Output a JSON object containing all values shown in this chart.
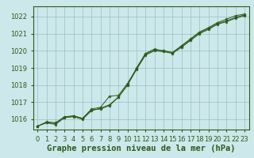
{
  "title": "Graphe pression niveau de la mer (hPa)",
  "x_labels": [
    0,
    1,
    2,
    3,
    4,
    5,
    6,
    7,
    8,
    9,
    10,
    11,
    12,
    13,
    14,
    15,
    16,
    17,
    18,
    19,
    20,
    21,
    22,
    23
  ],
  "ylim": [
    1015.4,
    1022.6
  ],
  "yticks": [
    1016,
    1017,
    1018,
    1019,
    1020,
    1021,
    1022
  ],
  "background_color": "#cce8ea",
  "grid_color": "#9bbfbf",
  "line_color": "#2d5a1b",
  "marker_color": "#2d5a1b",
  "text_color": "#2d5a1b",
  "axis_color": "#2d5a1b",
  "series1": [
    1015.6,
    1015.8,
    1015.75,
    1016.1,
    1016.2,
    1016.05,
    1016.55,
    1016.6,
    1016.8,
    1017.3,
    1018.0,
    1019.0,
    1019.85,
    1020.1,
    1020.0,
    1019.9,
    1020.3,
    1020.7,
    1021.1,
    1021.35,
    1021.65,
    1021.85,
    1022.05,
    1022.15
  ],
  "series2": [
    1015.6,
    1015.85,
    1015.8,
    1016.15,
    1016.2,
    1016.05,
    1016.6,
    1016.7,
    1017.35,
    1017.4,
    1018.1,
    1018.95,
    1019.8,
    1020.05,
    1020.0,
    1019.9,
    1020.25,
    1020.65,
    1021.05,
    1021.3,
    1021.6,
    1021.75,
    1021.95,
    1022.1
  ],
  "series3": [
    1015.6,
    1015.8,
    1015.7,
    1016.1,
    1016.15,
    1016.0,
    1016.5,
    1016.65,
    1016.85,
    1017.3,
    1018.0,
    1018.9,
    1019.75,
    1020.0,
    1019.95,
    1019.85,
    1020.2,
    1020.6,
    1021.0,
    1021.25,
    1021.55,
    1021.7,
    1021.9,
    1022.05
  ],
  "title_fontsize": 7.5,
  "tick_fontsize": 6.0,
  "figwidth": 3.2,
  "figheight": 2.0,
  "dpi": 100
}
